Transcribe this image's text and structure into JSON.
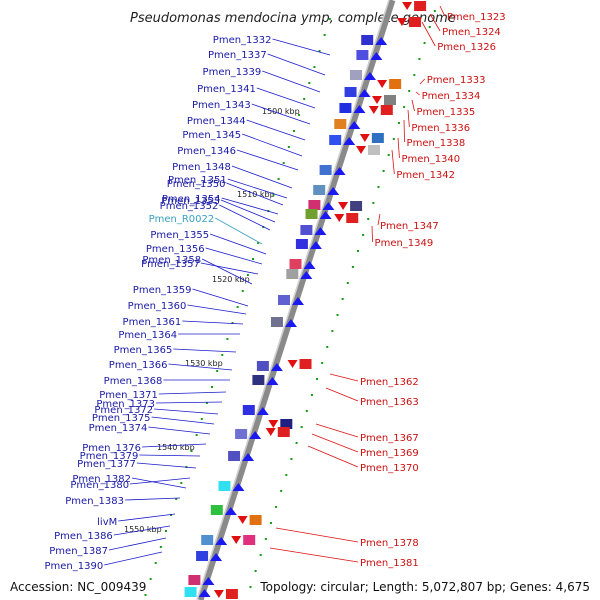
{
  "title": "Pseudomonas mendocina ymp, complete genome",
  "accession_text": "Accession: NC_009439",
  "topology_text": "Topology: circular; Length: 5,072,807 bp; Genes: 4,675",
  "colors": {
    "backbone": "#999999",
    "forward_label": "#1a1aa6",
    "reverse_label": "#cc1111",
    "rna_label": "#3aa0c0"
  },
  "kbp_marks": [
    "1500 kbp",
    "1510 kbp",
    "1520 kbp",
    "1530 kbp",
    "1540 kbp",
    "1550 kbp"
  ],
  "left_genes": [
    "Pmen_1332",
    "Pmen_1337",
    "Pmen_1339",
    "Pmen_1341",
    "Pmen_1343",
    "Pmen_1344",
    "Pmen_1345",
    "Pmen_1346",
    "Pmen_1348",
    "Pmen_1351",
    "Pmen_1350",
    "Pmen_1354",
    "Pmen_1353",
    "Pmen_1352",
    "Pmen_R0022",
    "Pmen_1355",
    "Pmen_1356",
    "Pmen_1357",
    "Pmen_1358",
    "Pmen_1359",
    "Pmen_1360",
    "Pmen_1361",
    "Pmen_1364",
    "Pmen_1365",
    "Pmen_1366",
    "Pmen_1368",
    "Pmen_1371",
    "Pmen_1373",
    "Pmen_1372",
    "Pmen_1375",
    "Pmen_1374",
    "Pmen_1376",
    "Pmen_1379",
    "Pmen_1377",
    "Pmen_1380",
    "Pmen_1382",
    "Pmen_1383",
    "livM",
    "Pmen_1386",
    "Pmen_1387",
    "Pmen_1390"
  ],
  "right_genes": [
    "Pmen_1323",
    "Pmen_1324",
    "Pmen_1326",
    "Pmen_1333",
    "Pmen_1334",
    "Pmen_1335",
    "Pmen_1336",
    "Pmen_1338",
    "Pmen_1340",
    "Pmen_1342",
    "Pmen_1347",
    "Pmen_1349",
    "Pmen_1362",
    "Pmen_1363",
    "Pmen_1367",
    "Pmen_1369",
    "Pmen_1370",
    "Pmen_1378",
    "Pmen_1381"
  ]
}
